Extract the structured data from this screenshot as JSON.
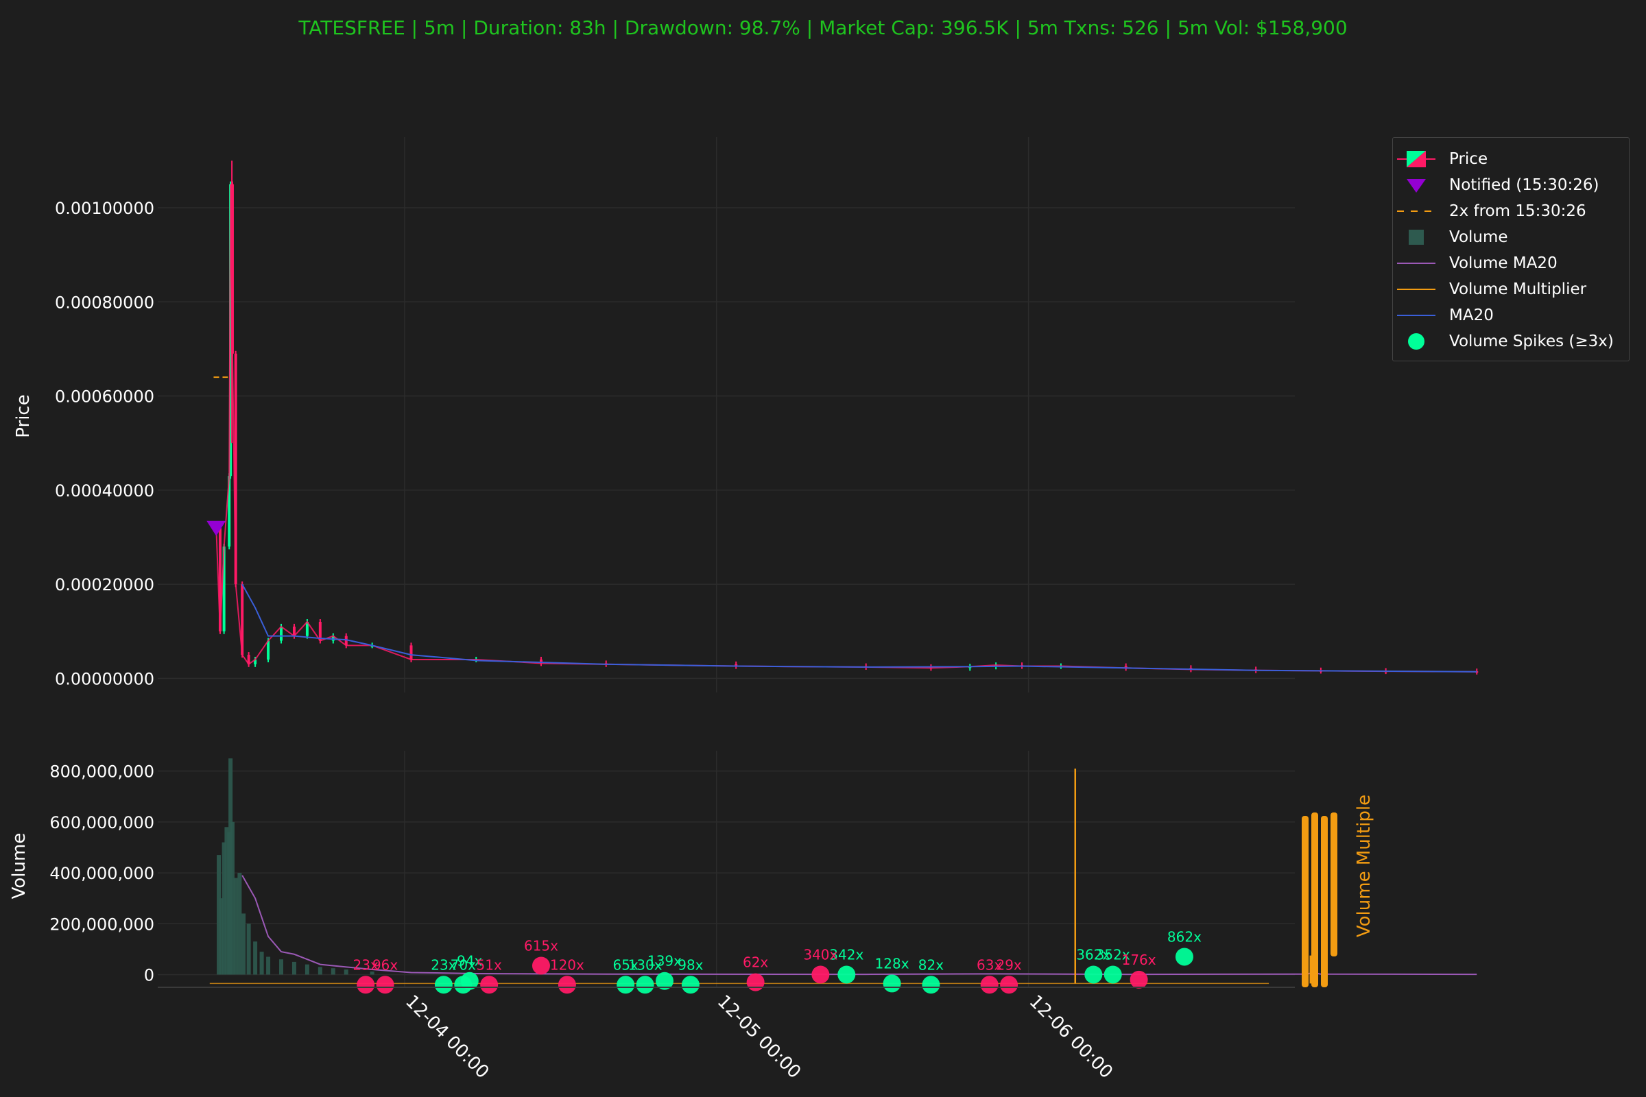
{
  "chart_data": {
    "type": "candlestick",
    "title": "TATESFREE | 5m | Duration: 83h | Drawdown: 98.7% | Market Cap: 396.5K | 5m Txns: 526 | 5m Vol: $158,900",
    "price_panel": {
      "ylabel": "Price",
      "ylim": [
        -3e-05,
        0.00115
      ],
      "yticks": [
        "0.00000000",
        "0.00020000",
        "0.00040000",
        "0.00060000",
        "0.00080000",
        "0.00100000"
      ],
      "ytick_values": [
        0,
        0.0002,
        0.0004,
        0.0006,
        0.0008,
        0.001
      ],
      "notified": {
        "time_h": 0,
        "price": 0.00032,
        "label": "Notified (15:30:26)"
      },
      "two_x_level": {
        "value": 0.00064,
        "label": "2x from 15:30:26"
      },
      "price_series": [
        [
          0,
          0.00032
        ],
        [
          0.3,
          0.0001
        ],
        [
          0.6,
          0.00028
        ],
        [
          1.0,
          0.00043
        ],
        [
          1.1,
          0.00105
        ],
        [
          1.25,
          0.00069
        ],
        [
          1.5,
          0.0002
        ],
        [
          2.0,
          5e-05
        ],
        [
          2.5,
          3e-05
        ],
        [
          3,
          4e-05
        ],
        [
          4,
          8e-05
        ],
        [
          5,
          0.00011
        ],
        [
          6,
          9e-05
        ],
        [
          7,
          0.00012
        ],
        [
          8,
          8e-05
        ],
        [
          9,
          9e-05
        ],
        [
          10,
          7e-05
        ],
        [
          12,
          7e-05
        ],
        [
          15,
          4e-05
        ],
        [
          20,
          4e-05
        ],
        [
          25,
          3.2e-05
        ],
        [
          30,
          3e-05
        ],
        [
          40,
          2.6e-05
        ],
        [
          50,
          2.4e-05
        ],
        [
          55,
          2.2e-05
        ],
        [
          58,
          2.5e-05
        ],
        [
          60,
          2.8e-05
        ],
        [
          62,
          2.6e-05
        ],
        [
          65,
          2.6e-05
        ],
        [
          70,
          2.2e-05
        ],
        [
          75,
          1.9e-05
        ],
        [
          80,
          1.7e-05
        ],
        [
          85,
          1.6e-05
        ],
        [
          90,
          1.5e-05
        ],
        [
          97,
          1.4e-05
        ]
      ],
      "ma20_series": [
        [
          2,
          0.0002
        ],
        [
          3,
          0.00015
        ],
        [
          4,
          9e-05
        ],
        [
          6,
          9e-05
        ],
        [
          8,
          8.5e-05
        ],
        [
          10,
          8.2e-05
        ],
        [
          12,
          7e-05
        ],
        [
          15,
          5e-05
        ],
        [
          20,
          3.8e-05
        ],
        [
          30,
          3e-05
        ],
        [
          40,
          2.6e-05
        ],
        [
          50,
          2.4e-05
        ],
        [
          58,
          2.5e-05
        ],
        [
          62,
          2.6e-05
        ],
        [
          70,
          2.2e-05
        ],
        [
          80,
          1.7e-05
        ],
        [
          97,
          1.4e-05
        ]
      ],
      "upper_wick_time_h": 1.1,
      "upper_wick_high": 0.0011
    },
    "volume_panel": {
      "ylabel": "Volume",
      "ylabel_right": "Volume Multiple",
      "ylim": [
        -50000000,
        880000000
      ],
      "yticks": [
        "0",
        "200,000,000",
        "400,000,000",
        "600,000,000",
        "800,000,000"
      ],
      "ytick_values": [
        0,
        200000000,
        400000000,
        600000000,
        800000000
      ],
      "volume_bars": [
        [
          0.2,
          470000000
        ],
        [
          0.4,
          300000000
        ],
        [
          0.6,
          520000000
        ],
        [
          0.8,
          580000000
        ],
        [
          1.0,
          560000000
        ],
        [
          1.1,
          850000000
        ],
        [
          1.25,
          600000000
        ],
        [
          1.5,
          380000000
        ],
        [
          1.8,
          400000000
        ],
        [
          2.1,
          240000000
        ],
        [
          2.5,
          200000000
        ],
        [
          3,
          130000000
        ],
        [
          3.5,
          90000000
        ],
        [
          4,
          70000000
        ],
        [
          5,
          60000000
        ],
        [
          6,
          50000000
        ],
        [
          7,
          40000000
        ],
        [
          8,
          30000000
        ],
        [
          9,
          25000000
        ],
        [
          10,
          20000000
        ],
        [
          12,
          12000000
        ]
      ],
      "volume_ma20": [
        [
          2,
          390000000
        ],
        [
          3,
          300000000
        ],
        [
          4,
          150000000
        ],
        [
          5,
          90000000
        ],
        [
          6,
          80000000
        ],
        [
          7,
          60000000
        ],
        [
          8,
          40000000
        ],
        [
          10,
          30000000
        ],
        [
          12,
          20000000
        ],
        [
          15,
          8000000
        ],
        [
          20,
          4000000
        ],
        [
          30,
          2000000
        ],
        [
          50,
          1000000
        ],
        [
          60,
          3000000
        ],
        [
          70,
          1000000
        ],
        [
          84,
          2000000
        ],
        [
          84.3,
          8000000
        ],
        [
          85,
          2000000
        ],
        [
          97,
          1000000
        ]
      ],
      "multiplier_spikes": [
        [
          66.1,
          810000000
        ],
        [
          84.2,
          75000000
        ]
      ]
    },
    "spikes": [
      {
        "label": "615x",
        "time_h": 25,
        "y": 35000000,
        "color": "#ff1a66"
      },
      {
        "label": "342x",
        "time_h": 48.5,
        "y": 0,
        "color": "#00ff99"
      },
      {
        "label": "340x",
        "time_h": 46.5,
        "y": 0,
        "color": "#ff1a66"
      },
      {
        "label": "139x",
        "time_h": 34.5,
        "y": -25000000,
        "color": "#00ff99"
      },
      {
        "label": "94x",
        "time_h": 19.5,
        "y": -25000000,
        "color": "#00ff99"
      },
      {
        "label": "62x",
        "time_h": 41.5,
        "y": -30000000,
        "color": "#ff1a66"
      },
      {
        "label": "862x",
        "time_h": 74.5,
        "y": 70000000,
        "color": "#00ff99"
      },
      {
        "label": "362x",
        "time_h": 67.5,
        "y": 0,
        "color": "#00ff99"
      },
      {
        "label": "352x",
        "time_h": 69,
        "y": 0,
        "color": "#00ff99"
      },
      {
        "label": "176x",
        "time_h": 71,
        "y": -20000000,
        "color": "#ff1a66"
      },
      {
        "label": "23x",
        "time_h": 11.5,
        "y": -40000000,
        "color": "#ff1a66"
      },
      {
        "label": "96x",
        "time_h": 13,
        "y": -40000000,
        "color": "#ff1a66"
      },
      {
        "label": "23x",
        "time_h": 17.5,
        "y": -40000000,
        "color": "#00ff99"
      },
      {
        "label": "70x",
        "time_h": 19,
        "y": -40000000,
        "color": "#00ff99"
      },
      {
        "label": "51x",
        "time_h": 21,
        "y": -40000000,
        "color": "#ff1a66"
      },
      {
        "label": "120x",
        "time_h": 27,
        "y": -40000000,
        "color": "#ff1a66"
      },
      {
        "label": "65x",
        "time_h": 31.5,
        "y": -40000000,
        "color": "#00ff99"
      },
      {
        "label": "130x",
        "time_h": 33,
        "y": -40000000,
        "color": "#00ff99"
      },
      {
        "label": "98x",
        "time_h": 36.5,
        "y": -40000000,
        "color": "#00ff99"
      },
      {
        "label": "128x",
        "time_h": 52,
        "y": -35000000,
        "color": "#00ff99"
      },
      {
        "label": "82x",
        "time_h": 55,
        "y": -40000000,
        "color": "#00ff99"
      },
      {
        "label": "63x",
        "time_h": 59.5,
        "y": -40000000,
        "color": "#ff1a66"
      },
      {
        "label": "29x",
        "time_h": 61,
        "y": -40000000,
        "color": "#ff1a66"
      }
    ],
    "x_axis": {
      "range_h": [
        -4.5,
        83
      ],
      "ticks": [
        {
          "label": "12-04 00:00",
          "time_h": 14.5
        },
        {
          "label": "12-05 00:00",
          "time_h": 38.5
        },
        {
          "label": "12-06 00:00",
          "time_h": 62.5
        }
      ]
    },
    "legend": {
      "placement": "outside-right",
      "items": [
        {
          "label": "Price",
          "type": "candle"
        },
        {
          "label": "Notified (15:30:26)",
          "type": "triangle"
        },
        {
          "label": "2x from 15:30:26",
          "type": "dashed"
        },
        {
          "label": "Volume",
          "type": "square"
        },
        {
          "label": "Volume MA20",
          "type": "line-purple"
        },
        {
          "label": "Volume Multiplier",
          "type": "line-orange"
        },
        {
          "label": "MA20",
          "type": "line-blue"
        },
        {
          "label": "Volume Spikes (≥3x)",
          "type": "circle"
        }
      ]
    },
    "colors": {
      "up": "#00ff99",
      "down": "#ff1a66",
      "ma20": "#3a5fd9",
      "volume_ma20": "#9b59b6",
      "multiplier": "#f39c12",
      "notified": "#9400d3",
      "title": "#1fc41f",
      "background": "#1e1e1e",
      "grid": "#2c2c2c"
    },
    "grid": true
  }
}
